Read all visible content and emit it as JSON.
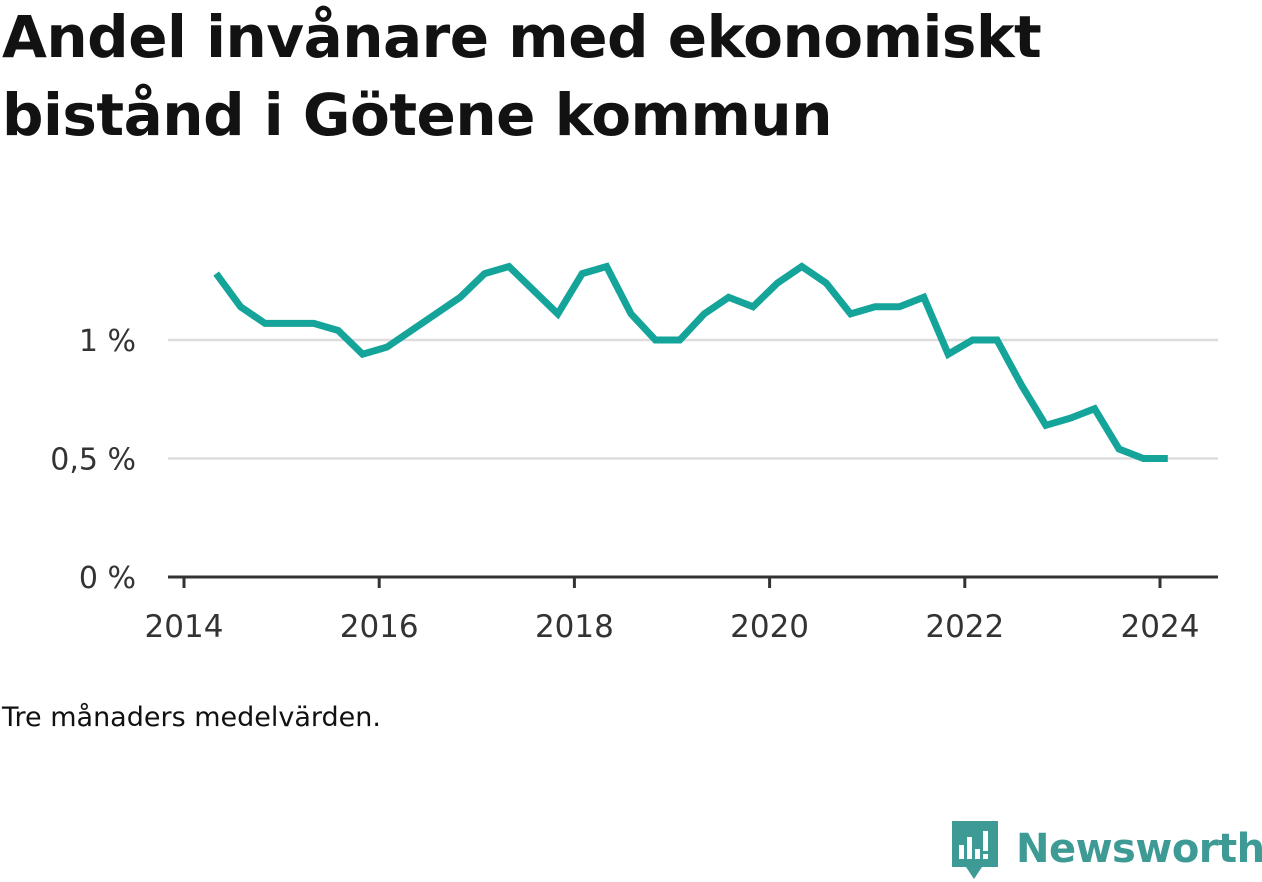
{
  "title_lines": [
    "Andel invånare med ekonomiskt",
    "bistånd i Götene kommun"
  ],
  "note": "Tre månaders medelvärden.",
  "brand": {
    "name": "Newsworthy",
    "icon": "chart-speech-bubble-icon",
    "color": "#3e9a95"
  },
  "chart_data": {
    "type": "line",
    "title": "Andel invånare med ekonomiskt bistånd i Götene kommun",
    "xlabel": "",
    "ylabel": "",
    "xlim": [
      2014.0,
      2024.6
    ],
    "ylim": [
      0,
      1.45
    ],
    "x_ticks": [
      2014,
      2016,
      2018,
      2020,
      2022,
      2024
    ],
    "x_tick_labels": [
      "2014",
      "2016",
      "2018",
      "2020",
      "2022",
      "2024"
    ],
    "y_ticks": [
      0,
      0.5,
      1
    ],
    "y_tick_labels": [
      "0 %",
      "0,5 %",
      "1 %"
    ],
    "grid": "horizontal",
    "line_color": "#14a49a",
    "series": [
      {
        "x": [
          2014.33,
          2014.58,
          2014.83,
          2015.08,
          2015.33,
          2015.58,
          2015.83,
          2016.08,
          2016.33,
          2016.58,
          2016.83,
          2017.08,
          2017.33,
          2017.58,
          2017.83,
          2018.08,
          2018.33,
          2018.58,
          2018.83,
          2019.08,
          2019.33,
          2019.58,
          2019.83,
          2020.08,
          2020.33,
          2020.58,
          2020.83,
          2021.08,
          2021.33,
          2021.58,
          2021.83,
          2022.08,
          2022.33,
          2022.58,
          2022.83,
          2023.08,
          2023.33,
          2023.58,
          2023.83,
          2024.08
        ],
        "y": [
          1.28,
          1.14,
          1.07,
          1.07,
          1.07,
          1.04,
          0.94,
          0.97,
          1.04,
          1.11,
          1.18,
          1.28,
          1.31,
          1.21,
          1.11,
          1.28,
          1.31,
          1.11,
          1.0,
          1.0,
          1.11,
          1.18,
          1.14,
          1.24,
          1.31,
          1.24,
          1.11,
          1.14,
          1.14,
          1.18,
          0.94,
          1.0,
          1.0,
          0.81,
          0.64,
          0.67,
          0.71,
          0.54,
          0.5,
          0.5
        ]
      }
    ]
  }
}
